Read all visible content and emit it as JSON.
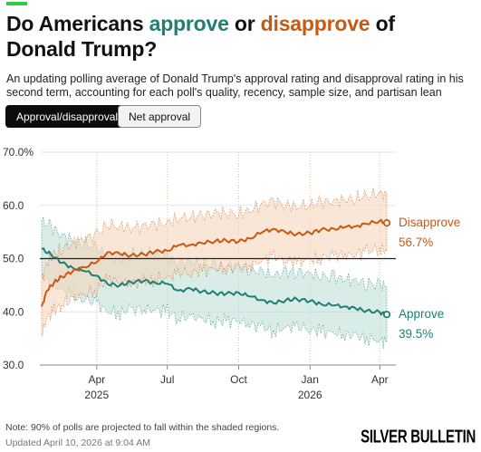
{
  "header": {
    "title_parts": [
      "Do Americans ",
      "approve",
      " or ",
      "disapprove",
      " of Donald Trump?"
    ],
    "subtitle": "An updating polling average of Donald Trump's approval rating and disapproval rating in his second term, accounting for each poll's quality, recency, sample size, and partisan lean"
  },
  "toggle": {
    "active_label": "Approval/disapproval",
    "inactive_label": "Net approval"
  },
  "colors": {
    "approve": "#1f7f72",
    "disapprove": "#c75a12",
    "approve_band": "#bcdcd4",
    "disapprove_band": "#f6d2b7",
    "accent": "#2ecc40"
  },
  "chart_data": {
    "type": "line",
    "title": "Do Americans approve or disapprove of Donald Trump?",
    "xlabel": "",
    "ylabel": "",
    "x_range": [
      "2025-01-20",
      "2026-04-10"
    ],
    "ylim": [
      30,
      70
    ],
    "y_ticks": [
      30,
      40,
      50,
      60,
      70
    ],
    "y_tick_labels": [
      "30.0",
      "40.0",
      "50.0",
      "60.0",
      "70.0%"
    ],
    "x_ticks": [
      {
        "date": "2025-04-01",
        "label": "Apr",
        "sub": "2025"
      },
      {
        "date": "2025-07-01",
        "label": "Jul",
        "sub": ""
      },
      {
        "date": "2025-10-01",
        "label": "Oct",
        "sub": ""
      },
      {
        "date": "2026-01-01",
        "label": "Jan",
        "sub": "2026"
      },
      {
        "date": "2026-04-01",
        "label": "Apr",
        "sub": ""
      }
    ],
    "reference_line": 50,
    "grid": "vertical dotted at month ticks",
    "band_note": "90% of polls projected within shaded regions",
    "series": [
      {
        "name": "Approve",
        "latest": "39.5%",
        "points": [
          [
            "2025-01-20",
            51.8
          ],
          [
            "2025-02-01",
            50.8
          ],
          [
            "2025-02-15",
            49.2
          ],
          [
            "2025-03-01",
            48.3
          ],
          [
            "2025-03-15",
            47.7
          ],
          [
            "2025-04-01",
            46.8
          ],
          [
            "2025-04-15",
            45.2
          ],
          [
            "2025-05-01",
            45.0
          ],
          [
            "2025-05-15",
            45.6
          ],
          [
            "2025-06-01",
            45.8
          ],
          [
            "2025-06-15",
            45.5
          ],
          [
            "2025-07-01",
            45.3
          ],
          [
            "2025-07-15",
            44.0
          ],
          [
            "2025-08-01",
            44.3
          ],
          [
            "2025-08-15",
            43.8
          ],
          [
            "2025-09-01",
            43.5
          ],
          [
            "2025-09-15",
            43.4
          ],
          [
            "2025-10-01",
            43.6
          ],
          [
            "2025-10-15",
            42.9
          ],
          [
            "2025-11-01",
            42.2
          ],
          [
            "2025-11-15",
            41.6
          ],
          [
            "2025-12-01",
            42.2
          ],
          [
            "2025-12-15",
            42.4
          ],
          [
            "2026-01-01",
            42.0
          ],
          [
            "2026-01-15",
            41.5
          ],
          [
            "2026-02-01",
            41.2
          ],
          [
            "2026-02-15",
            41.0
          ],
          [
            "2026-03-01",
            40.6
          ],
          [
            "2026-03-15",
            40.2
          ],
          [
            "2026-04-01",
            39.9
          ],
          [
            "2026-04-10",
            39.5
          ]
        ],
        "band_halfwidth": 5.2
      },
      {
        "name": "Disapprove",
        "latest": "56.7%",
        "points": [
          [
            "2025-01-20",
            41.0
          ],
          [
            "2025-01-27",
            44.0
          ],
          [
            "2025-02-05",
            45.5
          ],
          [
            "2025-02-15",
            46.6
          ],
          [
            "2025-03-01",
            47.6
          ],
          [
            "2025-03-15",
            48.4
          ],
          [
            "2025-04-01",
            49.3
          ],
          [
            "2025-04-15",
            51.2
          ],
          [
            "2025-05-01",
            50.9
          ],
          [
            "2025-05-15",
            50.6
          ],
          [
            "2025-06-01",
            50.8
          ],
          [
            "2025-06-15",
            51.3
          ],
          [
            "2025-07-01",
            51.5
          ],
          [
            "2025-07-15",
            52.5
          ],
          [
            "2025-08-01",
            52.6
          ],
          [
            "2025-08-15",
            52.9
          ],
          [
            "2025-09-01",
            53.3
          ],
          [
            "2025-09-15",
            53.4
          ],
          [
            "2025-10-01",
            53.2
          ],
          [
            "2025-10-15",
            53.8
          ],
          [
            "2025-11-01",
            55.0
          ],
          [
            "2025-11-15",
            55.6
          ],
          [
            "2025-12-01",
            54.9
          ],
          [
            "2025-12-15",
            54.6
          ],
          [
            "2026-01-01",
            54.8
          ],
          [
            "2026-01-15",
            55.4
          ],
          [
            "2026-02-01",
            55.6
          ],
          [
            "2026-02-15",
            55.9
          ],
          [
            "2026-03-01",
            56.1
          ],
          [
            "2026-03-15",
            56.5
          ],
          [
            "2026-04-01",
            57.1
          ],
          [
            "2026-04-10",
            56.7
          ]
        ],
        "band_halfwidth": 5.2
      }
    ]
  },
  "footer": {
    "note": "Note: 90% of polls are projected to fall within the shaded regions.",
    "updated": "Updated April 10, 2026 at 9:04 AM",
    "logo": "SILVER BULLETIN"
  }
}
